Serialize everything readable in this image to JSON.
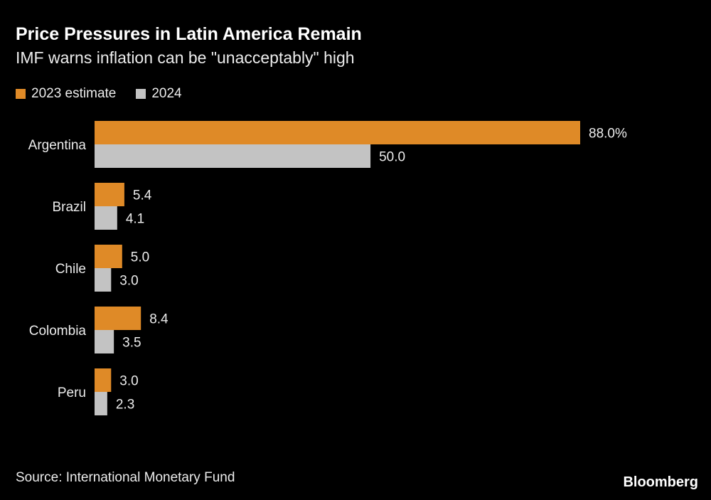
{
  "title": "Price Pressures in Latin America Remain",
  "subtitle": "IMF warns inflation can be \"unacceptably\" high",
  "source": "Source: International Monetary Fund",
  "logo": "Bloomberg",
  "colors": {
    "series_2023": "#df8a27",
    "series_2024": "#c3c3c3",
    "background": "#000000"
  },
  "chart_data": {
    "type": "bar",
    "orientation": "horizontal",
    "categories": [
      "Argentina",
      "Brazil",
      "Chile",
      "Colombia",
      "Peru"
    ],
    "series": [
      {
        "name": "2023 estimate",
        "values": [
          88.0,
          5.4,
          5.0,
          8.4,
          3.0
        ],
        "labels": [
          "88.0%",
          "5.4",
          "5.0",
          "8.4",
          "3.0"
        ]
      },
      {
        "name": "2024",
        "values": [
          50.0,
          4.1,
          3.0,
          3.5,
          2.3
        ],
        "labels": [
          "50.0",
          "4.1",
          "3.0",
          "3.5",
          "2.3"
        ]
      }
    ],
    "xlim": [
      0,
      88
    ],
    "grid": false,
    "legend_position": "top-left"
  }
}
